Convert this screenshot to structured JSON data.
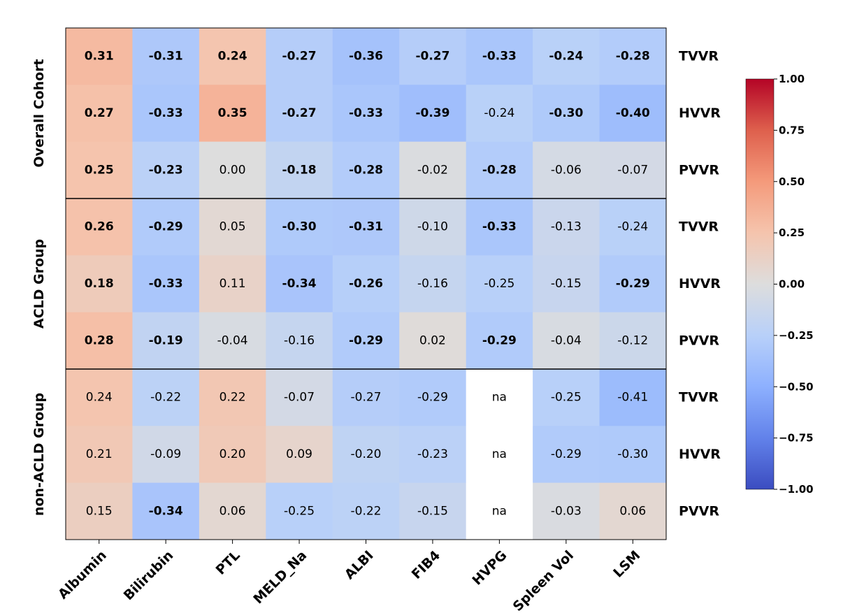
{
  "chart_data": {
    "type": "heatmap",
    "colormap": "coolwarm",
    "vmin": -1.0,
    "vmax": 1.0,
    "columns": [
      "Albumin",
      "Bilirubin",
      "PTL",
      "MELD_Na",
      "ALBI",
      "FIB4",
      "HVPG",
      "Spleen Vol",
      "LSM"
    ],
    "groups": [
      {
        "name": "Overall Cohort",
        "rows": [
          {
            "label": "TVVR",
            "values": [
              0.31,
              -0.31,
              0.24,
              -0.27,
              -0.36,
              -0.27,
              -0.33,
              -0.24,
              -0.28
            ],
            "bold": [
              true,
              true,
              true,
              true,
              true,
              true,
              true,
              true,
              true
            ]
          },
          {
            "label": "HVVR",
            "values": [
              0.27,
              -0.33,
              0.35,
              -0.27,
              -0.33,
              -0.39,
              -0.24,
              -0.3,
              -0.4
            ],
            "bold": [
              true,
              true,
              true,
              true,
              true,
              true,
              false,
              true,
              true
            ]
          },
          {
            "label": "PVVR",
            "values": [
              0.25,
              -0.23,
              0.0,
              -0.18,
              -0.28,
              -0.02,
              -0.28,
              -0.06,
              -0.07
            ],
            "bold": [
              true,
              true,
              false,
              true,
              true,
              false,
              true,
              false,
              false
            ]
          }
        ]
      },
      {
        "name": "ACLD Group",
        "rows": [
          {
            "label": "TVVR",
            "values": [
              0.26,
              -0.29,
              0.05,
              -0.3,
              -0.31,
              -0.1,
              -0.33,
              -0.13,
              -0.24
            ],
            "bold": [
              true,
              true,
              false,
              true,
              true,
              false,
              true,
              false,
              false
            ]
          },
          {
            "label": "HVVR",
            "values": [
              0.18,
              -0.33,
              0.11,
              -0.34,
              -0.26,
              -0.16,
              -0.25,
              -0.15,
              -0.29
            ],
            "bold": [
              true,
              true,
              false,
              true,
              true,
              false,
              false,
              false,
              true
            ]
          },
          {
            "label": "PVVR",
            "values": [
              0.28,
              -0.19,
              -0.04,
              -0.16,
              -0.29,
              0.02,
              -0.29,
              -0.04,
              -0.12
            ],
            "bold": [
              true,
              true,
              false,
              false,
              true,
              false,
              true,
              false,
              false
            ]
          }
        ]
      },
      {
        "name": "non-ACLD Group",
        "rows": [
          {
            "label": "TVVR",
            "values": [
              0.24,
              -0.22,
              0.22,
              -0.07,
              -0.27,
              -0.29,
              null,
              -0.25,
              -0.41
            ],
            "bold": [
              false,
              false,
              false,
              false,
              false,
              false,
              false,
              false,
              false
            ]
          },
          {
            "label": "HVVR",
            "values": [
              0.21,
              -0.09,
              0.2,
              0.09,
              -0.2,
              -0.23,
              null,
              -0.29,
              -0.3
            ],
            "bold": [
              false,
              false,
              false,
              false,
              false,
              false,
              false,
              false,
              false
            ]
          },
          {
            "label": "PVVR",
            "values": [
              0.15,
              -0.34,
              0.06,
              -0.25,
              -0.22,
              -0.15,
              null,
              -0.03,
              0.06
            ],
            "bold": [
              false,
              true,
              false,
              false,
              false,
              false,
              false,
              false,
              false
            ]
          }
        ]
      }
    ],
    "missing_label": "na",
    "colorbar_ticks": [
      "1.00",
      "0.75",
      "0.50",
      "0.25",
      "0.00",
      "−0.25",
      "−0.50",
      "−0.75",
      "−1.00"
    ],
    "colorbar_tick_values": [
      1.0,
      0.75,
      0.5,
      0.25,
      0.0,
      -0.25,
      -0.5,
      -0.75,
      -1.0
    ]
  }
}
